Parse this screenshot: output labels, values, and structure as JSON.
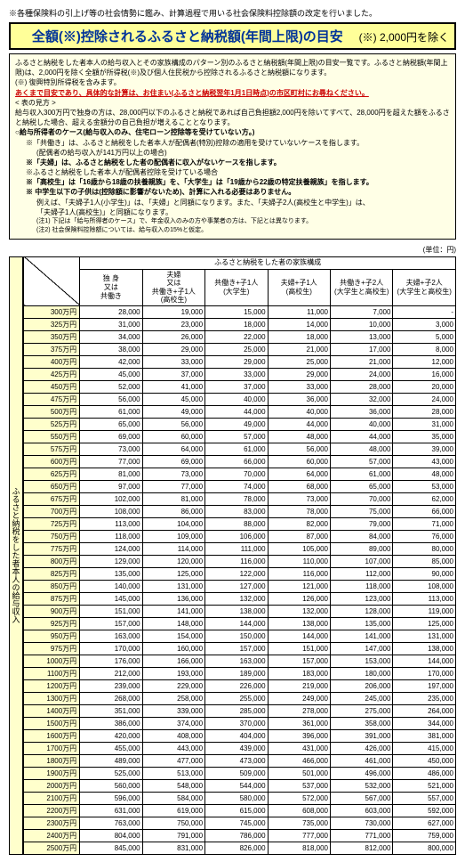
{
  "intro": "※各種保険料の引上げ等の社会情勢に鑑み、計算過程で用いる社会保険料控除額の改定を行いました。",
  "title": {
    "main": "全額(※)控除されるふるさと納税額(年間上限)の目安",
    "note": "(※) 2,000円を除く"
  },
  "info": {
    "p1": "ふるさと納税をした者本人の給与収入とその家族構成のパターン別のふるさと納税額(年間上限)の目安一覧です。ふるさと納税額(年間上限)は、2,000円を除く全額が所得税(※)及び個人住民税から控除されるふるさと納税額になります。",
    "p1b": "(※) 復興特別所得税を含みます。",
    "warn": "あくまで目安であり、具体的な計算は、お住まい(ふるさと納税翌年1月1日時点)の市区町村にお尋ねください。",
    "mikata": "< 表の見方 >",
    "p2": "給与収入300万円で独身の方は、28,000円以下のふるさと納税であれば自己負担額2,000円を除いてすべて、28,000円を超えた額をふるさと納税した場合、超える金額分の自己負担が増えることとなります。",
    "h1": "○給与所得者のケース(給与収入のみ、住宅ローン控除等を受けていない方。)",
    "h1a": "※「共働き」は、ふるさと納税をした者本人が配偶者(特別)控除の適用を受けていないケースを指します。",
    "h1a2": "(配偶者の給与収入が141万円以上の場合)",
    "h1b": "※「夫婦」は、ふるさと納税をした者の配偶者に収入がないケースを指します。",
    "h1c": "※ふるさと納税をした者本人が配偶者控除を受けている場合",
    "h1d": "※「高校生」は「16歳から18歳の扶養親族」を、「大学生」は「19歳から22歳の特定扶養親族」を指します。",
    "h1e": "※ 中学生以下の子供は(控除額に影響がないため)、計算に入れる必要はありません。",
    "h1e2": "例えば、「夫婦子1人(小学生)」は、「夫婦」と同額になります。また、「夫婦子2人(高校生と中学生)」は、",
    "h1e3": "「夫婦子1人(高校生)」と同額になります。",
    "n1": "(注1) 下記は「給与所得者のケース」で、年金収入のみの方や事業者の方は、下記とは異なります。",
    "n2": "(注2) 社会保険料控除額については、給与収入の15%と仮定。"
  },
  "unit": "(単位：円)",
  "vheader": "ふるさと納税をした者本人の給与収入",
  "famheader": "ふるさと納税をした者の家族構成",
  "cols": [
    {
      "l1": "独 身",
      "l2": "又は",
      "l3": "共働き"
    },
    {
      "l1": "夫婦",
      "l2": "又は",
      "l3": "共働き+子1人",
      "l4": "(高校生)"
    },
    {
      "l1": "共働き+子1人",
      "l2": "(大学生)"
    },
    {
      "l1": "夫婦+子1人",
      "l2": "(高校生)"
    },
    {
      "l1": "共働き+子2人",
      "l2": "(大学生と高校生)"
    },
    {
      "l1": "夫婦+子2人",
      "l2": "(大学生と高校生)"
    }
  ],
  "rows": [
    [
      "300万円",
      "28,000",
      "19,000",
      "15,000",
      "11,000",
      "7,000",
      "-"
    ],
    [
      "325万円",
      "31,000",
      "23,000",
      "18,000",
      "14,000",
      "10,000",
      "3,000"
    ],
    [
      "350万円",
      "34,000",
      "26,000",
      "22,000",
      "18,000",
      "13,000",
      "5,000"
    ],
    [
      "375万円",
      "38,000",
      "29,000",
      "25,000",
      "21,000",
      "17,000",
      "8,000"
    ],
    [
      "400万円",
      "42,000",
      "33,000",
      "29,000",
      "25,000",
      "21,000",
      "12,000"
    ],
    [
      "425万円",
      "45,000",
      "37,000",
      "33,000",
      "29,000",
      "24,000",
      "16,000"
    ],
    [
      "450万円",
      "52,000",
      "41,000",
      "37,000",
      "33,000",
      "28,000",
      "20,000"
    ],
    [
      "475万円",
      "56,000",
      "45,000",
      "40,000",
      "36,000",
      "32,000",
      "24,000"
    ],
    [
      "500万円",
      "61,000",
      "49,000",
      "44,000",
      "40,000",
      "36,000",
      "28,000"
    ],
    [
      "525万円",
      "65,000",
      "56,000",
      "49,000",
      "44,000",
      "40,000",
      "31,000"
    ],
    [
      "550万円",
      "69,000",
      "60,000",
      "57,000",
      "48,000",
      "44,000",
      "35,000"
    ],
    [
      "575万円",
      "73,000",
      "64,000",
      "61,000",
      "56,000",
      "48,000",
      "39,000"
    ],
    [
      "600万円",
      "77,000",
      "69,000",
      "66,000",
      "60,000",
      "57,000",
      "43,000"
    ],
    [
      "625万円",
      "81,000",
      "73,000",
      "70,000",
      "64,000",
      "61,000",
      "48,000"
    ],
    [
      "650万円",
      "97,000",
      "77,000",
      "74,000",
      "68,000",
      "65,000",
      "53,000"
    ],
    [
      "675万円",
      "102,000",
      "81,000",
      "78,000",
      "73,000",
      "70,000",
      "62,000"
    ],
    [
      "700万円",
      "108,000",
      "86,000",
      "83,000",
      "78,000",
      "75,000",
      "66,000"
    ],
    [
      "725万円",
      "113,000",
      "104,000",
      "88,000",
      "82,000",
      "79,000",
      "71,000"
    ],
    [
      "750万円",
      "118,000",
      "109,000",
      "106,000",
      "87,000",
      "84,000",
      "76,000"
    ],
    [
      "775万円",
      "124,000",
      "114,000",
      "111,000",
      "105,000",
      "89,000",
      "80,000"
    ],
    [
      "800万円",
      "129,000",
      "120,000",
      "116,000",
      "110,000",
      "107,000",
      "85,000"
    ],
    [
      "825万円",
      "135,000",
      "125,000",
      "122,000",
      "116,000",
      "112,000",
      "90,000"
    ],
    [
      "850万円",
      "140,000",
      "131,000",
      "127,000",
      "121,000",
      "118,000",
      "108,000"
    ],
    [
      "875万円",
      "145,000",
      "136,000",
      "132,000",
      "126,000",
      "123,000",
      "113,000"
    ],
    [
      "900万円",
      "151,000",
      "141,000",
      "138,000",
      "132,000",
      "128,000",
      "119,000"
    ],
    [
      "925万円",
      "157,000",
      "148,000",
      "144,000",
      "138,000",
      "135,000",
      "125,000"
    ],
    [
      "950万円",
      "163,000",
      "154,000",
      "150,000",
      "144,000",
      "141,000",
      "131,000"
    ],
    [
      "975万円",
      "170,000",
      "160,000",
      "157,000",
      "151,000",
      "147,000",
      "138,000"
    ],
    [
      "1000万円",
      "176,000",
      "166,000",
      "163,000",
      "157,000",
      "153,000",
      "144,000"
    ],
    [
      "1100万円",
      "212,000",
      "193,000",
      "189,000",
      "183,000",
      "180,000",
      "170,000"
    ],
    [
      "1200万円",
      "239,000",
      "229,000",
      "226,000",
      "219,000",
      "206,000",
      "197,000"
    ],
    [
      "1300万円",
      "268,000",
      "258,000",
      "255,000",
      "249,000",
      "245,000",
      "235,000"
    ],
    [
      "1400万円",
      "351,000",
      "339,000",
      "285,000",
      "278,000",
      "275,000",
      "264,000"
    ],
    [
      "1500万円",
      "386,000",
      "374,000",
      "370,000",
      "361,000",
      "358,000",
      "344,000"
    ],
    [
      "1600万円",
      "420,000",
      "408,000",
      "404,000",
      "396,000",
      "391,000",
      "381,000"
    ],
    [
      "1700万円",
      "455,000",
      "443,000",
      "439,000",
      "431,000",
      "426,000",
      "415,000"
    ],
    [
      "1800万円",
      "489,000",
      "477,000",
      "473,000",
      "466,000",
      "461,000",
      "450,000"
    ],
    [
      "1900万円",
      "525,000",
      "513,000",
      "509,000",
      "501,000",
      "496,000",
      "486,000"
    ],
    [
      "2000万円",
      "560,000",
      "548,000",
      "544,000",
      "537,000",
      "532,000",
      "521,000"
    ],
    [
      "2100万円",
      "596,000",
      "584,000",
      "580,000",
      "572,000",
      "567,000",
      "557,000"
    ],
    [
      "2200万円",
      "631,000",
      "619,000",
      "615,000",
      "608,000",
      "603,000",
      "592,000"
    ],
    [
      "2300万円",
      "763,000",
      "750,000",
      "745,000",
      "735,000",
      "730,000",
      "627,000"
    ],
    [
      "2400万円",
      "804,000",
      "791,000",
      "786,000",
      "777,000",
      "771,000",
      "759,000"
    ],
    [
      "2500万円",
      "845,000",
      "831,000",
      "826,000",
      "818,000",
      "812,000",
      "800,000"
    ]
  ],
  "style": {
    "title_bg": "#ffff99",
    "info_bg": "#ffffe6",
    "inc_bg": "#ffffcc",
    "red": "#cc0000",
    "blue": "#003399"
  }
}
